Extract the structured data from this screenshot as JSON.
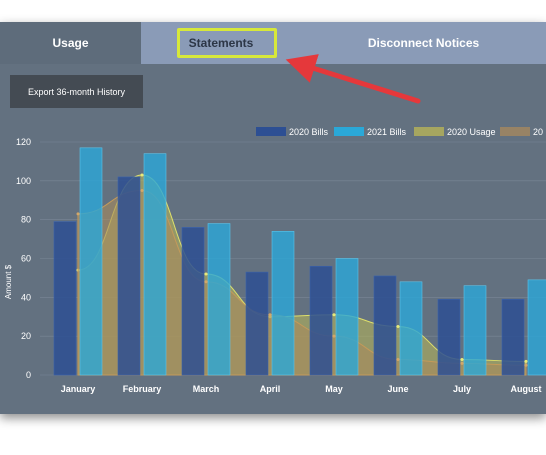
{
  "tabs": [
    {
      "label": "Usage"
    },
    {
      "label": "Statements"
    },
    {
      "label": "Disconnect Notices"
    }
  ],
  "toolbar": {
    "export_label": "Export 36-month History"
  },
  "colors": {
    "bills_2020": "#2d4f93",
    "bills_2021": "#2aa8d8",
    "usage_2020": "#bcb855",
    "usage_2021": "#a98a5c",
    "highlight": "#d7e83a",
    "arrow": "#e5383b"
  },
  "chart_data": {
    "type": "bar",
    "categories": [
      "January",
      "February",
      "March",
      "April",
      "May",
      "June",
      "July",
      "August"
    ],
    "ylabel": "Amount $",
    "ylim": [
      0,
      120
    ],
    "yticks": [
      0,
      20,
      40,
      60,
      80,
      100,
      120
    ],
    "legend_position": "top-right",
    "series": [
      {
        "name": "2020 Bills",
        "kind": "bar",
        "values": [
          79,
          102,
          76,
          53,
          56,
          51,
          39,
          39
        ]
      },
      {
        "name": "2021 Bills",
        "kind": "bar",
        "values": [
          117,
          114,
          78,
          74,
          60,
          48,
          46,
          49
        ]
      },
      {
        "name": "2020 Usage",
        "kind": "area",
        "values": [
          54,
          103,
          52,
          30,
          31,
          25,
          8,
          7
        ]
      },
      {
        "name": "20",
        "kind": "area",
        "values": [
          83,
          95,
          48,
          31,
          20,
          8,
          6,
          5
        ]
      }
    ]
  }
}
